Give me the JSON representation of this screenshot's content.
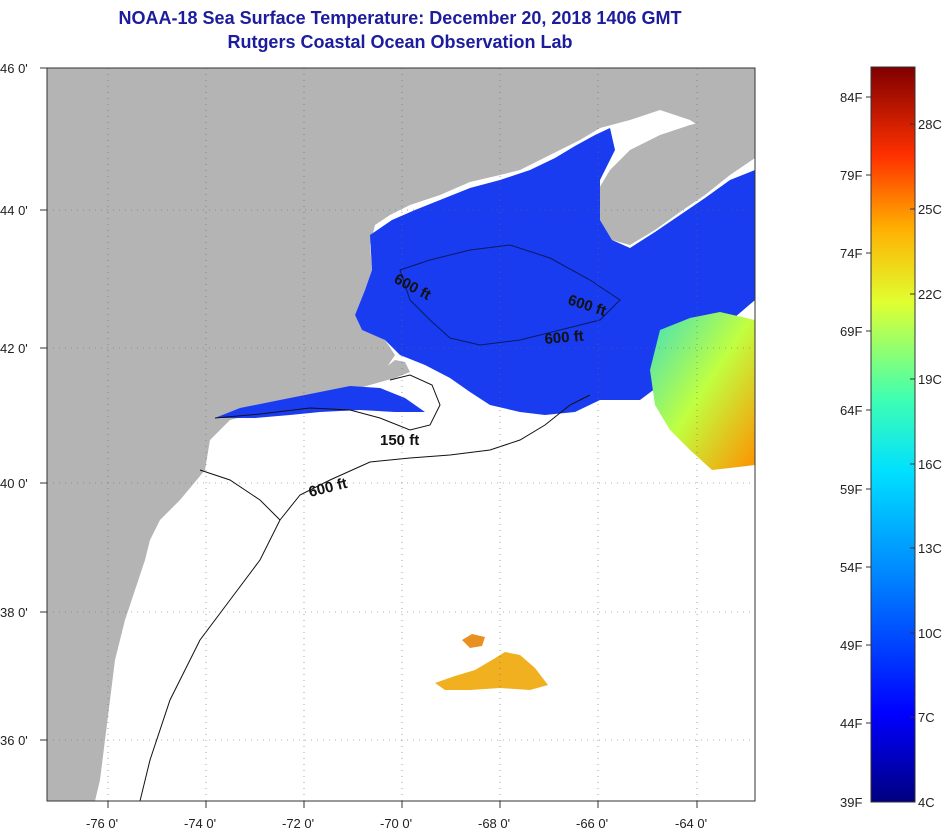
{
  "title": {
    "line1": "NOAA-18 Sea Surface Temperature:  December 20, 2018 1406 GMT",
    "line2": "Rutgers Coastal Ocean Observation Lab"
  },
  "map": {
    "lat_labels": [
      "46 0'",
      "44 0'",
      "42 0'",
      "40 0'",
      "38 0'",
      "36 0'"
    ],
    "lon_labels": [
      "-76 0'",
      "-74 0'",
      "-72 0'",
      "-70 0'",
      "-68 0'",
      "-66 0'",
      "-64 0'"
    ],
    "contour_labels": [
      "600 ft",
      "600 ft",
      "600 ft",
      "150 ft",
      "600 ft"
    ],
    "land_color": "#b4b4b4",
    "ocean_color": "#ffffff"
  },
  "colorbar": {
    "fahrenheit_labels": [
      "84F",
      "79F",
      "74F",
      "69F",
      "64F",
      "59F",
      "54F",
      "49F",
      "44F",
      "39F"
    ],
    "celsius_labels": [
      "28C",
      "25C",
      "22C",
      "19C",
      "16C",
      "13C",
      "10C",
      "7C",
      "4C"
    ],
    "colors": [
      "#7f0000",
      "#ff0000",
      "#ff8000",
      "#ffd000",
      "#e0ff30",
      "#40ffb0",
      "#00c8ff",
      "#0060ff",
      "#0000cc",
      "#00007f"
    ]
  }
}
